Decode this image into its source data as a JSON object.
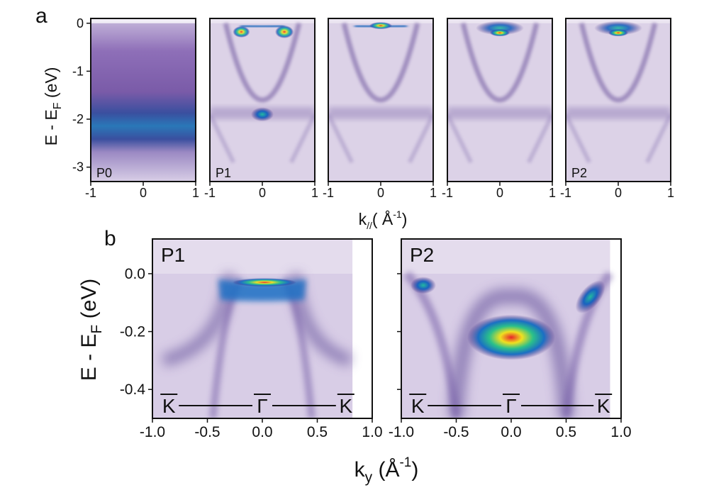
{
  "panel_a": {
    "label": "a",
    "ylabel": {
      "base": "E - E",
      "sub": "F",
      "unit": " (eV)"
    },
    "xlabel": {
      "base": "k",
      "sub": "//",
      "unit": "( Å",
      "sup": "-1",
      "close": ")"
    },
    "panels": [
      {
        "tag": "P0",
        "kind": "p0"
      },
      {
        "tag": "P1",
        "kind": "p1"
      },
      {
        "tag": "",
        "kind": "m1"
      },
      {
        "tag": "",
        "kind": "m2"
      },
      {
        "tag": "P2",
        "kind": "p2"
      }
    ]
  },
  "panel_b": {
    "label": "b",
    "ylabel": {
      "base": "E - E",
      "sub": "F",
      "unit": " (eV)"
    },
    "xlabel": {
      "base": "k",
      "sub": "y",
      "unit": " (Å",
      "sup": "-1",
      "close": ")"
    },
    "panels": [
      {
        "tag": "P1",
        "kind": "b1"
      },
      {
        "tag": "P2",
        "kind": "b2"
      }
    ],
    "path_labels": [
      "K",
      "Γ",
      "K"
    ]
  },
  "chart_data": [
    {
      "type": "heatmap",
      "panel": "a",
      "series": [
        {
          "name": "P0",
          "x": [
            -1,
            1
          ],
          "y": [
            -3.3,
            0.1
          ]
        },
        {
          "name": "P1",
          "x": [
            -1,
            1
          ],
          "y": [
            -3.3,
            0.1
          ]
        },
        {
          "name": "",
          "x": [
            -1,
            1
          ],
          "y": [
            -3.3,
            0.1
          ]
        },
        {
          "name": "",
          "x": [
            -1,
            1
          ],
          "y": [
            -3.3,
            0.1
          ]
        },
        {
          "name": "P2",
          "x": [
            -1,
            1
          ],
          "y": [
            -3.3,
            0.1
          ]
        }
      ],
      "xticks": [
        -1,
        0,
        1
      ],
      "xtick_labels": [
        "-1",
        "0",
        "1"
      ],
      "yticks": [
        0,
        -1,
        -2,
        -3
      ],
      "ytick_labels": [
        "0",
        "-1",
        "-2",
        "-3"
      ],
      "xlim": [
        -1,
        1
      ],
      "ylim": [
        -3.3,
        0.1
      ]
    },
    {
      "type": "heatmap",
      "panel": "b",
      "series": [
        {
          "name": "P1",
          "x": [
            -1.0,
            1.0
          ],
          "y": [
            -0.5,
            0.12
          ]
        },
        {
          "name": "P2",
          "x": [
            -1.0,
            1.0
          ],
          "y": [
            -0.5,
            0.12
          ]
        }
      ],
      "xticks": [
        -1.0,
        -0.5,
        0.0,
        0.5,
        1.0
      ],
      "xtick_labels": [
        "-1.0",
        "-0.5",
        "0.0",
        "0.5",
        "1.0"
      ],
      "yticks": [
        0.0,
        -0.2,
        -0.4
      ],
      "ytick_labels": [
        "0.0",
        "-0.2",
        "-0.4"
      ],
      "xlim": [
        -1.0,
        1.0
      ],
      "ylim": [
        -0.5,
        0.12
      ]
    }
  ]
}
